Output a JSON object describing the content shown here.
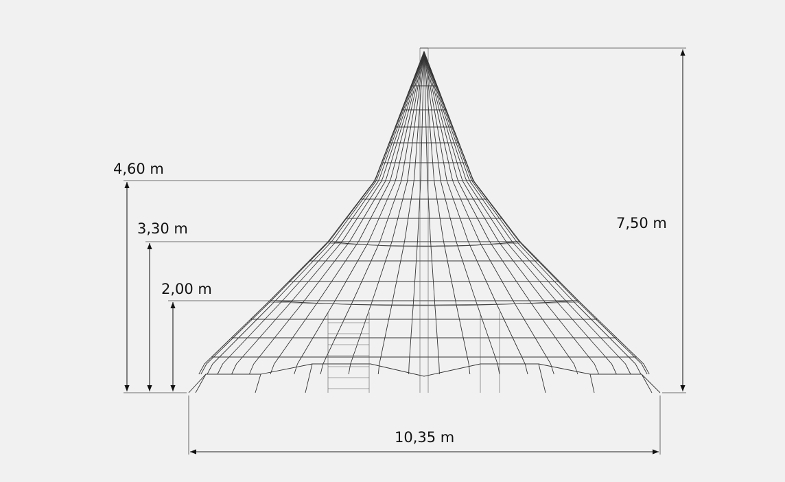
{
  "drawing": {
    "dimensions": {
      "height_platform_top": "4,60 m",
      "height_platform_middle": "3,30 m",
      "height_platform_low": "2,00 m",
      "total_height": "7,50 m",
      "total_width": "10,35 m"
    },
    "colors": {
      "background": "#f1f1f1",
      "lines": "#222222"
    }
  }
}
